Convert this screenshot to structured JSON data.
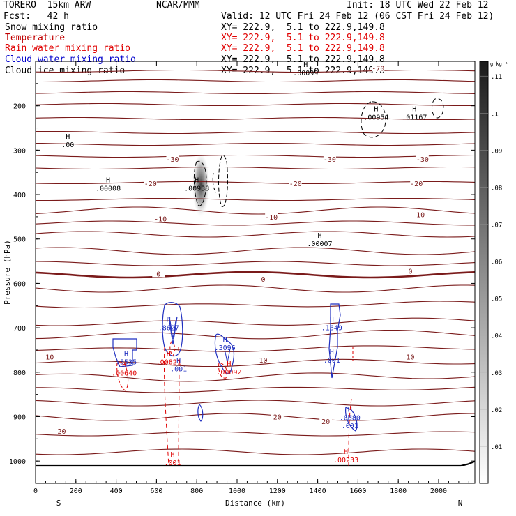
{
  "header": {
    "model": "TORERO  15km ARW",
    "org": "NCAR/MMM",
    "init": "Init: 18 UTC Wed 22 Feb 12",
    "fcst": "Fcst:   42 h",
    "valid": "Valid: 12 UTC Fri 24 Feb 12 (06 CST Fri 24 Feb 12)"
  },
  "fields": [
    {
      "name": "Snow mixing ratio",
      "xy": "",
      "color": "#000000"
    },
    {
      "name": "Temperature",
      "xy": "XY= 222.9,  5.1 to 222.9,149.8",
      "color": "#c00000"
    },
    {
      "name": "Rain water mixing ratio",
      "xy": "XY= 222.9,  5.1 to 222.9,149.8",
      "color": "#e00000"
    },
    {
      "name": "Cloud water mixing ratio",
      "xy": "XY= 222.9,  5.1 to 222.9,149.8",
      "color": "#0000cc"
    },
    {
      "name": "Cloud ice mixing ratio",
      "xy": "XY= 222.9,  5.1 to 222.9,149.8",
      "color": "#000000"
    }
  ],
  "field0_xy": "XY= 222.9,  5.1 to 222.9,149.8",
  "colorbar": {
    "unit": "g kg⁻¹",
    "ticks": [
      ".01",
      ".02",
      ".03",
      ".04",
      ".05",
      ".06",
      ".07",
      ".08",
      ".09",
      ".1",
      ".11"
    ]
  },
  "colors": {
    "temperature": "#7a1a1a",
    "rain": "#e00000",
    "cloud_water": "#1f2fc0",
    "surface": "#000000"
  },
  "chart_data": {
    "type": "cross-section",
    "xlabel": "Distance (km)",
    "ylabel": "Pressure (hPa)",
    "x_ticks": [
      0,
      200,
      400,
      600,
      800,
      1000,
      1200,
      1400,
      1600,
      1800,
      2000
    ],
    "y_ticks": [
      200,
      300,
      400,
      500,
      600,
      700,
      800,
      900,
      1000
    ],
    "xlim": [
      0,
      2180
    ],
    "ylim": [
      1050,
      100
    ],
    "x_end_labels": {
      "left": "S",
      "right": "N"
    },
    "temperature_labels": [
      {
        "text": "-70",
        "x": 1700,
        "p": 115
      },
      {
        "text": "-30",
        "x": 680,
        "p": 320
      },
      {
        "text": "-30",
        "x": 1460,
        "p": 320
      },
      {
        "text": "-30",
        "x": 1920,
        "p": 320
      },
      {
        "text": "-20",
        "x": 570,
        "p": 375
      },
      {
        "text": "-20",
        "x": 1290,
        "p": 375
      },
      {
        "text": "-20",
        "x": 1890,
        "p": 375
      },
      {
        "text": "-10",
        "x": 620,
        "p": 454
      },
      {
        "text": "-10",
        "x": 1170,
        "p": 450
      },
      {
        "text": "-10",
        "x": 1900,
        "p": 445
      },
      {
        "text": "0",
        "x": 610,
        "p": 578
      },
      {
        "text": "0",
        "x": 1130,
        "p": 590
      },
      {
        "text": "0",
        "x": 1860,
        "p": 572
      },
      {
        "text": "10",
        "x": 70,
        "p": 765
      },
      {
        "text": "10",
        "x": 1130,
        "p": 772
      },
      {
        "text": "10",
        "x": 1860,
        "p": 765
      },
      {
        "text": "20",
        "x": 130,
        "p": 932
      },
      {
        "text": "20",
        "x": 1200,
        "p": 900
      },
      {
        "text": "20",
        "x": 1440,
        "p": 910
      }
    ],
    "maxima": [
      {
        "field": "snow",
        "label": ".00099",
        "x": 1340,
        "p": 128
      },
      {
        "field": "snow",
        "label": ".00954",
        "x": 1690,
        "p": 228
      },
      {
        "field": "snow",
        "label": ".01167",
        "x": 1880,
        "p": 228
      },
      {
        "field": "snow",
        "label": ".00",
        "x": 160,
        "p": 290
      },
      {
        "field": "snow",
        "label": ".00008",
        "x": 360,
        "p": 388
      },
      {
        "field": "snow",
        "label": ".00938",
        "x": 800,
        "p": 388
      },
      {
        "field": "snow",
        "label": ".00007",
        "x": 1410,
        "p": 513
      },
      {
        "field": "cloud_water",
        "label": ".8627",
        "x": 660,
        "p": 702
      },
      {
        "field": "cloud_water",
        "label": ".1649",
        "x": 1470,
        "p": 702
      },
      {
        "field": "cloud_water",
        "label": ".3096",
        "x": 940,
        "p": 747
      },
      {
        "field": "cloud_water",
        "label": ".5535",
        "x": 450,
        "p": 779
      },
      {
        "field": "cloud_water",
        "label": ".001",
        "x": 710,
        "p": 795
      },
      {
        "field": "cloud_water",
        "label": ".001",
        "x": 1470,
        "p": 775
      },
      {
        "field": "cloud_water",
        "label": ".0680",
        "x": 1560,
        "p": 905
      },
      {
        "field": "cloud_water",
        "label": ".001",
        "x": 1560,
        "p": 923
      },
      {
        "field": "rain",
        "label": ".00821",
        "x": 660,
        "p": 779
      },
      {
        "field": "rain",
        "label": ".00640",
        "x": 440,
        "p": 804
      },
      {
        "field": "rain",
        "label": ".00092",
        "x": 960,
        "p": 802
      },
      {
        "field": "rain",
        "label": ".00233",
        "x": 1540,
        "p": 1000
      },
      {
        "field": "rain",
        "label": ".001",
        "x": 680,
        "p": 1006
      }
    ]
  }
}
